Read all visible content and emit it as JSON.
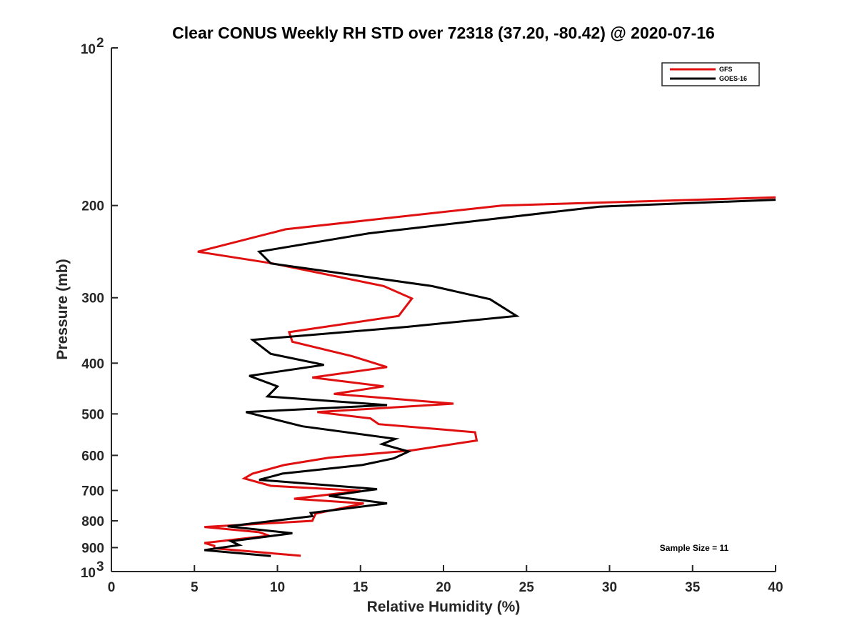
{
  "chart_data": {
    "type": "line",
    "title": "Clear CONUS Weekly RH STD over 72318 (37.20, -80.42) @ 2020-07-16",
    "xlabel": "Relative Humidity (%)",
    "ylabel": "Pressure (mb)",
    "xlim": [
      0,
      40
    ],
    "ylim": [
      100,
      1000
    ],
    "y_scale": "log",
    "y_reversed": true,
    "x_ticks": [
      "0",
      "5",
      "10",
      "15",
      "20",
      "25",
      "30",
      "35",
      "40"
    ],
    "y_ticks": [
      {
        "value": 100,
        "base": "10",
        "exp": "2"
      },
      {
        "value": 200,
        "label": "200"
      },
      {
        "value": 300,
        "label": "300"
      },
      {
        "value": 400,
        "label": "400"
      },
      {
        "value": 500,
        "label": "500"
      },
      {
        "value": 600,
        "label": "600"
      },
      {
        "value": 700,
        "label": "700"
      },
      {
        "value": 800,
        "label": "800"
      },
      {
        "value": 900,
        "label": "900"
      },
      {
        "value": 1000,
        "base": "10",
        "exp": "3"
      }
    ],
    "grid": false,
    "legend_position": "top-right",
    "annotation": "Sample Size = 11",
    "series": [
      {
        "name": "GFS",
        "color": "#e01010",
        "points": [
          [
            40.0,
            193
          ],
          [
            23.5,
            200
          ],
          [
            10.5,
            222
          ],
          [
            5.2,
            245
          ],
          [
            9.7,
            258
          ],
          [
            16.4,
            285
          ],
          [
            18.1,
            301
          ],
          [
            17.3,
            325
          ],
          [
            10.7,
            349
          ],
          [
            10.9,
            364
          ],
          [
            14.5,
            388
          ],
          [
            16.6,
            407
          ],
          [
            12.1,
            426
          ],
          [
            16.4,
            443
          ],
          [
            13.4,
            458
          ],
          [
            20.6,
            478
          ],
          [
            12.4,
            496
          ],
          [
            15.6,
            510
          ],
          [
            16.1,
            523
          ],
          [
            21.9,
            542
          ],
          [
            22.0,
            562
          ],
          [
            18.1,
            587
          ],
          [
            13.1,
            606
          ],
          [
            10.4,
            626
          ],
          [
            8.5,
            650
          ],
          [
            8.0,
            664
          ],
          [
            9.6,
            686
          ],
          [
            15.0,
            701
          ],
          [
            11.0,
            726
          ],
          [
            15.2,
            741
          ],
          [
            12.3,
            775
          ],
          [
            12.1,
            800
          ],
          [
            5.6,
            822
          ],
          [
            8.9,
            841
          ],
          [
            9.5,
            854
          ],
          [
            5.6,
            882
          ],
          [
            6.2,
            893
          ],
          [
            6.2,
            903
          ],
          [
            11.4,
            933
          ]
        ]
      },
      {
        "name": "GOES-16",
        "color": "#000000",
        "points": [
          [
            40.0,
            195
          ],
          [
            29.4,
            201
          ],
          [
            15.5,
            226
          ],
          [
            8.9,
            245
          ],
          [
            9.6,
            258
          ],
          [
            19.3,
            285
          ],
          [
            22.8,
            302
          ],
          [
            24.4,
            325
          ],
          [
            17.8,
            341
          ],
          [
            8.5,
            361
          ],
          [
            9.6,
            384
          ],
          [
            12.8,
            403
          ],
          [
            8.3,
            423
          ],
          [
            10.0,
            443
          ],
          [
            9.4,
            463
          ],
          [
            16.6,
            481
          ],
          [
            8.1,
            496
          ],
          [
            11.5,
            528
          ],
          [
            17.1,
            558
          ],
          [
            16.3,
            571
          ],
          [
            17.9,
            590
          ],
          [
            17.0,
            608
          ],
          [
            15.1,
            626
          ],
          [
            10.3,
            650
          ],
          [
            8.9,
            668
          ],
          [
            16.0,
            696
          ],
          [
            13.1,
            717
          ],
          [
            16.6,
            741
          ],
          [
            12.0,
            773
          ],
          [
            12.1,
            784
          ],
          [
            7.0,
            820
          ],
          [
            10.9,
            845
          ],
          [
            7.2,
            875
          ],
          [
            7.7,
            890
          ],
          [
            5.6,
            910
          ],
          [
            9.6,
            934
          ]
        ]
      }
    ]
  }
}
